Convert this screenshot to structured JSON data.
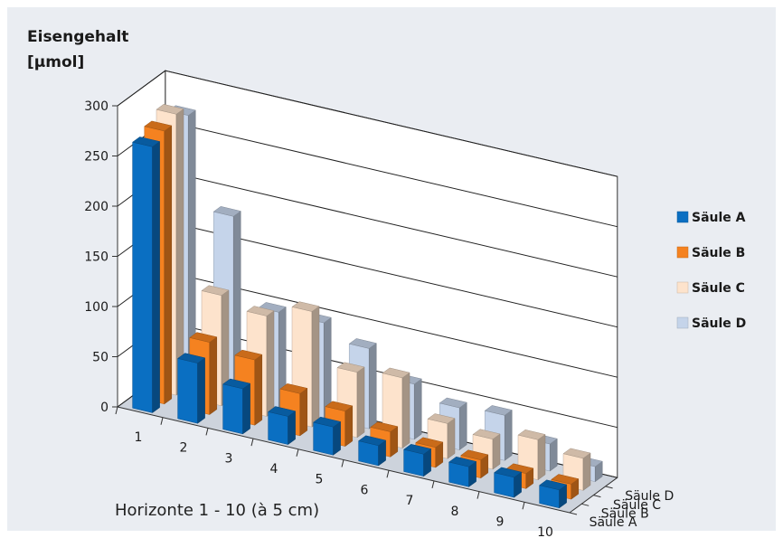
{
  "chart_data": {
    "type": "bar",
    "subtype": "3d-grouped-bar",
    "title": "",
    "ylabel_lines": [
      "Eisengehalt",
      "[µmol]"
    ],
    "xlabel": "Horizonte 1 - 10 (à 5 cm)",
    "categories": [
      "1",
      "2",
      "3",
      "4",
      "5",
      "6",
      "7",
      "8",
      "9",
      "10"
    ],
    "yticks": [
      "0",
      "50",
      "100",
      "150",
      "200",
      "250",
      "300"
    ],
    "ylim": [
      0,
      300
    ],
    "grid": true,
    "legend_position": "right",
    "series": [
      {
        "name": "Säule A",
        "color": "#0a6fc2",
        "values": [
          265,
          60,
          45,
          28,
          28,
          20,
          22,
          20,
          20,
          18
        ]
      },
      {
        "name": "Säule B",
        "color": "#f58220",
        "values": [
          272,
          72,
          65,
          42,
          35,
          25,
          20,
          18,
          15,
          15
        ]
      },
      {
        "name": "Säule C",
        "color": "#fde3cc",
        "values": [
          280,
          110,
          100,
          115,
          65,
          70,
          35,
          30,
          40,
          32
        ]
      },
      {
        "name": "Säule D",
        "color": "#c5d4ea",
        "values": [
          270,
          180,
          95,
          95,
          80,
          55,
          42,
          45,
          27,
          15
        ]
      }
    ]
  }
}
